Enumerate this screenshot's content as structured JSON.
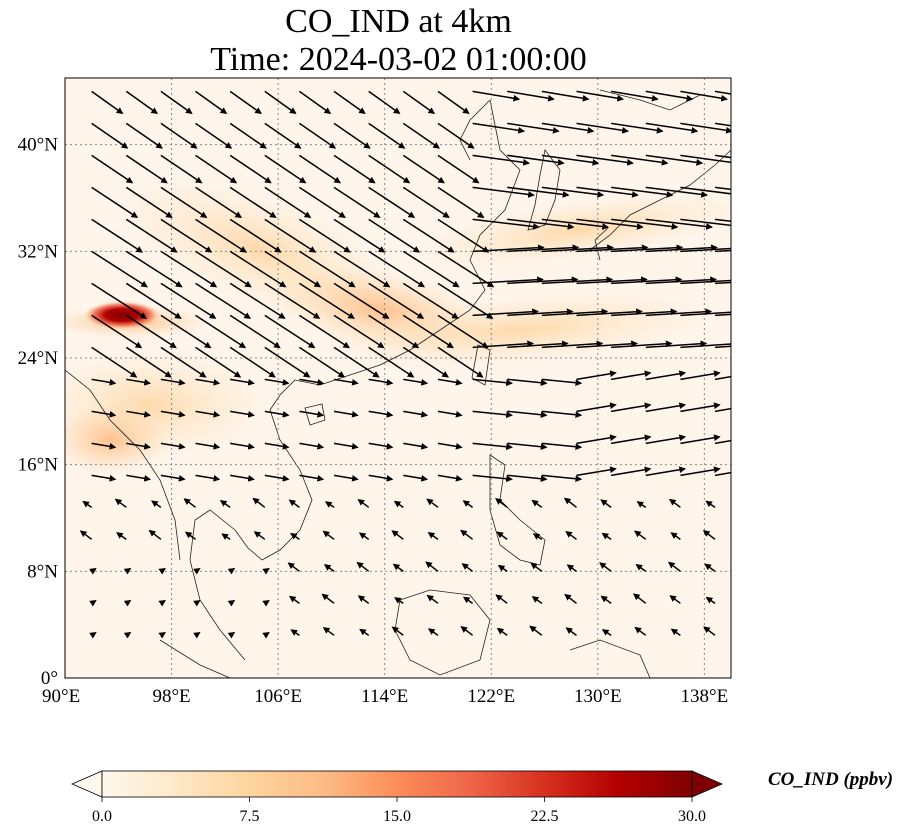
{
  "title": {
    "line1": "CO_IND at 4km",
    "line2": "Time: 2024-03-02 01:00:00"
  },
  "map": {
    "lon_range": [
      90,
      140
    ],
    "lat_range": [
      0,
      45
    ],
    "x_ticks": [
      {
        "value": 90,
        "label": "90°E"
      },
      {
        "value": 98,
        "label": "98°E"
      },
      {
        "value": 106,
        "label": "106°E"
      },
      {
        "value": 114,
        "label": "114°E"
      },
      {
        "value": 122,
        "label": "122°E"
      },
      {
        "value": 130,
        "label": "130°E"
      },
      {
        "value": 138,
        "label": "138°E"
      }
    ],
    "y_ticks": [
      {
        "value": 0,
        "label": "0°"
      },
      {
        "value": 8,
        "label": "8°N"
      },
      {
        "value": 16,
        "label": "16°N"
      },
      {
        "value": 24,
        "label": "24°N"
      },
      {
        "value": 32,
        "label": "32°N"
      },
      {
        "value": 40,
        "label": "40°N"
      }
    ],
    "gridlines": true,
    "colors": {
      "background": "#fff5eb",
      "coastline": "#222222",
      "gridline": "#8a8a8a",
      "wind_vector": "#000000"
    },
    "plume_hotspot": {
      "lon": 94.5,
      "lat": 27.0,
      "value_ppbv": 30
    }
  },
  "colorbar": {
    "label": "CO_IND (ppbv)",
    "range": [
      0,
      30
    ],
    "ticks": [
      {
        "value": 0,
        "label": "0.0"
      },
      {
        "value": 7.5,
        "label": "7.5"
      },
      {
        "value": 15,
        "label": "15.0"
      },
      {
        "value": 22.5,
        "label": "22.5"
      },
      {
        "value": 30,
        "label": "30.0"
      }
    ],
    "extend": "both",
    "colormap": "OrRd",
    "stops": [
      "#fff7ec",
      "#fee8c8",
      "#fdd49e",
      "#fdbb84",
      "#fc8d59",
      "#ef6548",
      "#d7301f",
      "#b30000",
      "#7f0000"
    ]
  }
}
